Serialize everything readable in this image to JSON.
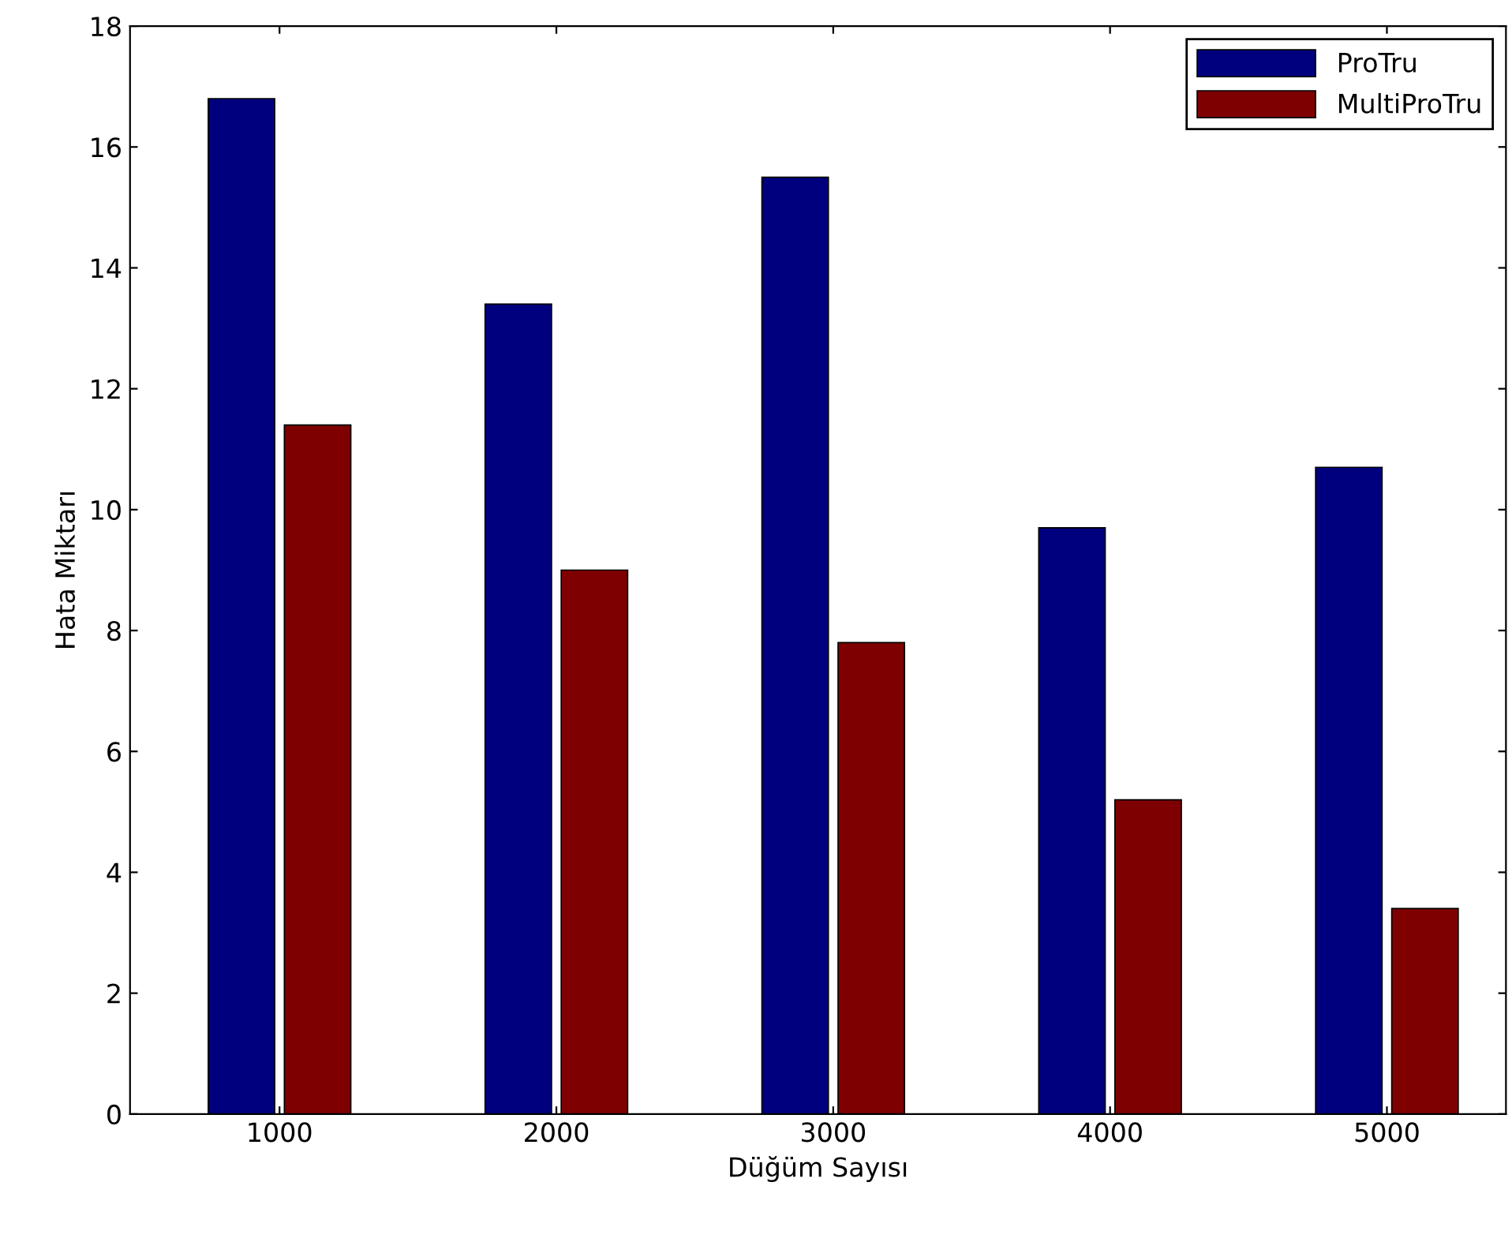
{
  "chart_data": {
    "type": "bar",
    "xlabel": "Düğüm Sayısı",
    "ylabel": "Hata Miktarı",
    "categories": [
      "1000",
      "2000",
      "3000",
      "4000",
      "5000"
    ],
    "series": [
      {
        "name": "ProTru",
        "color": "#00007f",
        "values": [
          16.8,
          13.4,
          15.5,
          9.7,
          10.7
        ]
      },
      {
        "name": "MultiProTru",
        "color": "#7f0000",
        "values": [
          11.4,
          9.0,
          7.8,
          5.2,
          3.4
        ]
      }
    ],
    "ylim": [
      0,
      18
    ],
    "yticks": [
      0,
      2,
      4,
      6,
      8,
      10,
      12,
      14,
      16,
      18
    ],
    "grid": false,
    "legend": "top right"
  }
}
